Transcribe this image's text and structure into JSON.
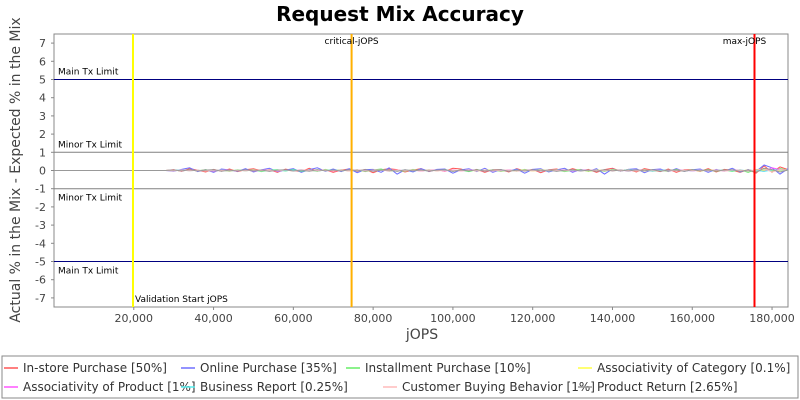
{
  "chart_data": {
    "type": "line",
    "title": "Request Mix Accuracy",
    "xlabel": "jOPS",
    "ylabel": "Actual % in the Mix - Expected % in the Mix",
    "xlim": [
      0,
      184000
    ],
    "ylim": [
      -7.5,
      7.5
    ],
    "x_ticks": [
      20000,
      40000,
      60000,
      80000,
      100000,
      120000,
      140000,
      160000,
      180000
    ],
    "x_tick_labels": [
      "20,000",
      "40,000",
      "60,000",
      "80,000",
      "100,000",
      "120,000",
      "140,000",
      "160,000",
      "180,000"
    ],
    "y_ticks": [
      -7,
      -6,
      -5,
      -4,
      -3,
      -2,
      -1,
      0,
      1,
      2,
      3,
      4,
      5,
      6,
      7
    ],
    "y_tick_labels": [
      "-7",
      "-6",
      "-5",
      "-4",
      "-3",
      "-2",
      "-1",
      "0",
      "1",
      "2",
      "3",
      "4",
      "5",
      "6",
      "7"
    ],
    "grid": false,
    "legend_placement": "bottom",
    "horizontal_lines": [
      {
        "y": 5,
        "label": "Main Tx Limit",
        "color": "#000080"
      },
      {
        "y": 1,
        "label": "Minor Tx Limit",
        "color": "#808080"
      },
      {
        "y": -1,
        "label": "Minor Tx Limit",
        "color": "#808080"
      },
      {
        "y": -5,
        "label": "Main Tx Limit",
        "color": "#000080"
      }
    ],
    "vertical_lines": [
      {
        "x": 19800,
        "label": "Validation Start jOPS",
        "color": "#ffff00"
      },
      {
        "x": 74600,
        "label": "critical-jOPS",
        "color": "#ffb000"
      },
      {
        "x": 175600,
        "label": "max-jOPS",
        "color": "#ff0000"
      }
    ],
    "x": [
      0,
      4000,
      8000,
      12000,
      16000,
      19800,
      24000,
      28000,
      30000,
      32000,
      34000,
      36000,
      38000,
      40000,
      42000,
      44000,
      46000,
      48000,
      50000,
      52000,
      54000,
      56000,
      58000,
      60000,
      62000,
      64000,
      66000,
      68000,
      70000,
      72000,
      74000,
      76000,
      78000,
      80000,
      82000,
      84000,
      86000,
      88000,
      90000,
      92000,
      94000,
      96000,
      98000,
      100000,
      102000,
      104000,
      106000,
      108000,
      110000,
      112000,
      114000,
      116000,
      118000,
      120000,
      122000,
      124000,
      126000,
      128000,
      130000,
      132000,
      134000,
      136000,
      138000,
      140000,
      142000,
      144000,
      146000,
      148000,
      150000,
      152000,
      154000,
      156000,
      158000,
      160000,
      162000,
      164000,
      166000,
      168000,
      170000,
      172000,
      174000,
      176000,
      178000,
      180000,
      182000,
      184000
    ],
    "series": [
      {
        "name": "In-store Purchase [50%]",
        "color": "#ff5555",
        "values": [
          0,
          0,
          0,
          0,
          0,
          0,
          0,
          0,
          0.05,
          -0.05,
          0.1,
          0.02,
          -0.08,
          0.06,
          -0.04,
          0.08,
          -0.06,
          0.04,
          0.1,
          -0.02,
          0.05,
          -0.1,
          0.07,
          0.0,
          -0.06,
          0.12,
          -0.04,
          0.05,
          -0.1,
          0.03,
          0.08,
          -0.05,
          0.06,
          -0.12,
          0.04,
          0.1,
          0.05,
          -0.08,
          0.02,
          0.1,
          -0.06,
          0.05,
          -0.04,
          0.12,
          0.08,
          -0.05,
          0.06,
          -0.1,
          0.04,
          0.05,
          -0.08,
          0.1,
          -0.03,
          0.06,
          -0.12,
          0.04,
          0.08,
          -0.05,
          0.1,
          -0.02,
          0.06,
          -0.1,
          0.05,
          0.12,
          -0.04,
          0.06,
          -0.08,
          0.1,
          0.02,
          -0.06,
          0.08,
          -0.1,
          0.05,
          0.04,
          -0.05,
          0.1,
          -0.08,
          0.06,
          0.02,
          -0.1,
          0.05,
          -0.15,
          0.25,
          -0.1,
          0.2,
          0.05
        ]
      },
      {
        "name": "Online Purchase [35%]",
        "color": "#6f6fff",
        "values": [
          0,
          0,
          0,
          0,
          0,
          0,
          0,
          0,
          -0.04,
          0.06,
          0.15,
          -0.06,
          0.05,
          -0.1,
          0.08,
          0.03,
          -0.05,
          0.1,
          -0.08,
          0.04,
          0.12,
          -0.06,
          0.02,
          0.1,
          -0.1,
          0.05,
          0.15,
          -0.04,
          0.08,
          -0.06,
          0.1,
          -0.12,
          0.05,
          0.06,
          -0.1,
          0.15,
          -0.2,
          0.04,
          -0.08,
          0.1,
          -0.05,
          0.06,
          0.08,
          -0.15,
          0.04,
          0.1,
          -0.06,
          0.12,
          -0.1,
          0.05,
          -0.04,
          0.08,
          -0.15,
          0.06,
          0.1,
          -0.08,
          0.04,
          0.12,
          -0.1,
          0.06,
          -0.05,
          0.1,
          -0.2,
          0.08,
          -0.04,
          0.06,
          0.1,
          -0.12,
          0.05,
          0.08,
          -0.06,
          0.1,
          -0.05,
          0.04,
          0.08,
          -0.1,
          0.06,
          -0.04,
          0.12,
          -0.08,
          0.05,
          -0.05,
          0.3,
          0.15,
          -0.2,
          0.1
        ]
      },
      {
        "name": "Installment Purchase [10%]",
        "color": "#66ee66",
        "values": [
          0,
          0,
          0,
          0,
          0,
          0,
          0,
          0,
          0.02,
          -0.03,
          0.04,
          -0.02,
          0.05,
          -0.04,
          0.03,
          -0.05,
          0.04,
          -0.02,
          0.05,
          -0.06,
          0.03,
          0.04,
          -0.03,
          0.05,
          -0.04,
          0.02,
          -0.05,
          0.06,
          -0.02,
          0.04,
          -0.03,
          0.05,
          -0.06,
          0.03,
          0.08,
          -0.04,
          0.02,
          -0.05,
          0.06,
          -0.03,
          0.04,
          -0.02,
          0.05,
          -0.04,
          0.03,
          -0.06,
          0.05,
          -0.02,
          0.04,
          -0.05,
          0.03,
          -0.04,
          0.06,
          -0.02,
          0.05,
          -0.03,
          0.04,
          -0.06,
          0.02,
          0.05,
          -0.04,
          0.03,
          -0.05,
          0.06,
          -0.02,
          0.04,
          -0.03,
          0.05,
          -0.04,
          0.02,
          -0.05,
          0.06,
          -0.03,
          0.04,
          -0.02,
          0.05,
          -0.04,
          0.03,
          -0.05,
          0.04,
          -0.1,
          0.05,
          0.08,
          -0.05,
          0.1,
          0.02
        ]
      },
      {
        "name": "Associativity of Category [0.1%]",
        "color": "#ffff44",
        "values": [
          0,
          0,
          0,
          0,
          0,
          0,
          0,
          0,
          0.01,
          -0.01,
          0.02,
          -0.01,
          0.01,
          -0.02,
          0.01,
          0.02,
          -0.01,
          0.01,
          -0.02,
          0.01,
          0.02,
          -0.01,
          0.01,
          -0.01,
          0.02,
          -0.02,
          0.01,
          0.01,
          -0.01,
          0.02,
          -0.01,
          0.01,
          -0.02,
          0.01,
          0.02,
          -0.01,
          0.01,
          -0.01,
          0.02,
          -0.02,
          0.01,
          0.01,
          -0.01,
          0.02,
          -0.01,
          0.01,
          -0.02,
          0.01,
          0.02,
          -0.01,
          0.01,
          -0.01,
          0.02,
          -0.02,
          0.01,
          0.01,
          -0.01,
          0.02,
          -0.01,
          0.01,
          -0.02,
          0.01,
          0.02,
          -0.01,
          0.01,
          -0.01,
          0.02,
          -0.02,
          0.01,
          0.01,
          -0.01,
          0.02,
          -0.01,
          0.01,
          -0.02,
          0.01,
          0.02,
          -0.01,
          0.01,
          -0.01,
          0.02,
          -0.02,
          0.01,
          0.01,
          -0.01,
          0.01
        ]
      },
      {
        "name": "Associativity of Product [1%]",
        "color": "#ff55ff",
        "values": [
          0,
          0,
          0,
          0,
          0,
          0,
          0,
          0,
          0.02,
          -0.02,
          0.03,
          -0.01,
          0.02,
          -0.03,
          0.02,
          0.01,
          -0.02,
          0.03,
          -0.02,
          0.01,
          0.02,
          -0.03,
          0.02,
          -0.01,
          0.03,
          -0.02,
          0.01,
          0.02,
          -0.03,
          0.02,
          -0.01,
          0.03,
          -0.02,
          0.01,
          0.02,
          -0.02,
          0.03,
          -0.01,
          0.02,
          -0.03,
          0.02,
          0.01,
          -0.02,
          0.03,
          -0.02,
          0.01,
          0.02,
          -0.03,
          0.02,
          -0.01,
          0.03,
          -0.02,
          0.01,
          0.02,
          -0.03,
          0.02,
          -0.01,
          0.03,
          -0.02,
          0.01,
          0.02,
          -0.02,
          0.03,
          -0.01,
          0.02,
          -0.03,
          0.02,
          0.01,
          -0.02,
          0.03,
          -0.02,
          0.01,
          0.02,
          -0.03,
          0.02,
          -0.01,
          0.03,
          -0.02,
          0.01,
          0.02,
          -0.03,
          0.02,
          -0.05,
          0.15,
          0.05,
          0.02
        ]
      },
      {
        "name": "Business Report [0.25%]",
        "color": "#55eeee",
        "values": [
          0,
          0,
          0,
          0,
          0,
          0,
          0,
          0,
          0.01,
          0.02,
          -0.01,
          0.01,
          -0.02,
          0.01,
          0.02,
          -0.01,
          0.01,
          -0.01,
          0.02,
          -0.02,
          0.01,
          0.01,
          -0.01,
          0.02,
          -0.01,
          0.01,
          -0.02,
          0.01,
          0.02,
          -0.01,
          0.01,
          -0.01,
          0.02,
          -0.02,
          0.01,
          0.01,
          -0.01,
          0.02,
          -0.01,
          0.01,
          -0.02,
          0.01,
          0.02,
          -0.01,
          0.01,
          -0.01,
          0.02,
          -0.02,
          0.01,
          0.01,
          -0.01,
          0.02,
          -0.01,
          0.01,
          -0.02,
          0.01,
          0.02,
          -0.01,
          0.01,
          -0.01,
          0.02,
          -0.02,
          0.01,
          0.01,
          -0.01,
          0.02,
          -0.01,
          0.01,
          -0.02,
          0.01,
          0.02,
          -0.01,
          0.01,
          -0.01,
          0.02,
          -0.02,
          0.01,
          0.01,
          -0.01,
          0.02,
          -0.01,
          0.01,
          -0.05,
          0.03,
          0.02,
          0.01
        ]
      },
      {
        "name": "Customer Buying Behavior [1%]",
        "color": "#ffbbbb",
        "values": [
          0,
          0,
          0,
          0,
          0,
          0,
          0,
          0,
          -0.02,
          0.03,
          -0.02,
          0.02,
          -0.03,
          0.02,
          0.01,
          -0.03,
          0.02,
          -0.02,
          0.03,
          -0.01,
          0.02,
          -0.02,
          0.03,
          -0.03,
          0.02,
          0.01,
          -0.02,
          0.03,
          -0.02,
          0.02,
          -0.03,
          0.02,
          0.01,
          -0.03,
          0.02,
          -0.02,
          0.03,
          -0.01,
          0.02,
          -0.02,
          0.03,
          -0.03,
          0.02,
          0.01,
          -0.02,
          0.03,
          -0.02,
          0.02,
          -0.03,
          0.02,
          0.01,
          -0.03,
          0.02,
          -0.02,
          0.03,
          -0.01,
          0.02,
          -0.02,
          0.03,
          -0.03,
          0.02,
          0.01,
          -0.02,
          0.03,
          -0.02,
          0.02,
          -0.03,
          0.02,
          0.01,
          -0.03,
          0.02,
          -0.02,
          0.03,
          -0.01,
          0.02,
          -0.02,
          0.03,
          -0.03,
          0.02,
          0.01,
          -0.02,
          0.03,
          0.1,
          -0.08,
          0.05,
          0.02
        ]
      },
      {
        "name": "Product Return [2.65%]",
        "color": "#999999",
        "values": [
          0,
          0,
          0,
          0,
          0,
          0,
          0,
          0,
          0.03,
          -0.02,
          0.04,
          -0.03,
          0.02,
          0.05,
          -0.04,
          0.02,
          -0.03,
          0.04,
          -0.02,
          0.03,
          -0.05,
          0.02,
          0.04,
          -0.03,
          0.02,
          -0.04,
          0.05,
          -0.02,
          0.03,
          -0.03,
          0.04,
          -0.02,
          0.05,
          -0.04,
          0.02,
          0.03,
          -0.05,
          0.04,
          -0.02,
          0.03,
          -0.03,
          0.02,
          0.04,
          -0.05,
          0.03,
          -0.02,
          0.04,
          -0.03,
          0.02,
          0.05,
          -0.04,
          0.02,
          -0.03,
          0.04,
          -0.02,
          0.03,
          -0.05,
          0.02,
          0.04,
          -0.03,
          0.02,
          -0.04,
          0.05,
          -0.02,
          0.03,
          -0.03,
          0.04,
          -0.02,
          0.05,
          -0.04,
          0.02,
          0.03,
          -0.05,
          0.04,
          -0.02,
          0.03,
          -0.03,
          0.02,
          0.04,
          -0.05,
          0.03,
          -0.1,
          0.12,
          0.05,
          -0.08,
          0.03
        ]
      }
    ]
  }
}
